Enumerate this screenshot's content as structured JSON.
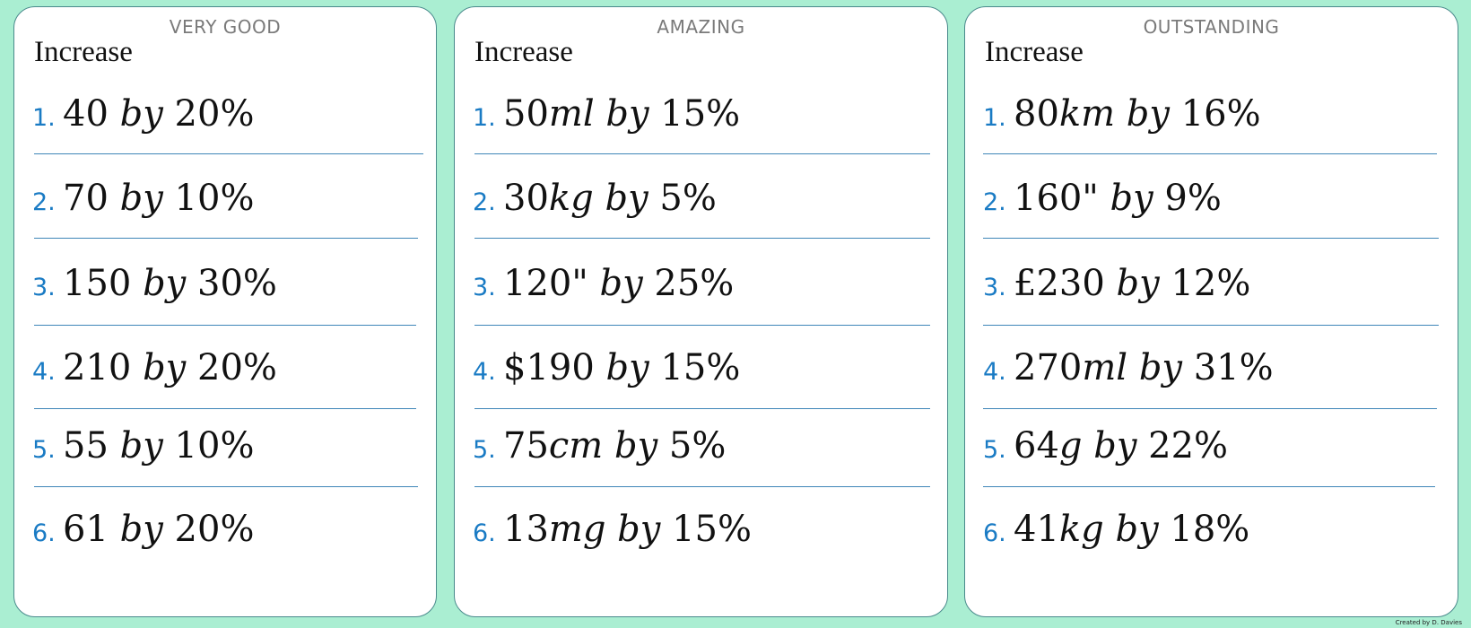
{
  "cards": [
    {
      "title": "VERY GOOD",
      "heading": "Increase",
      "questions": [
        {
          "num": "1.",
          "a": "40",
          "unit": "",
          "b": "20%"
        },
        {
          "num": "2.",
          "a": "70",
          "unit": "",
          "b": "10%"
        },
        {
          "num": "3.",
          "a": "150",
          "unit": "",
          "b": "30%"
        },
        {
          "num": "4.",
          "a": "210",
          "unit": "",
          "b": "20%"
        },
        {
          "num": "5.",
          "a": "55",
          "unit": "",
          "b": "10%"
        },
        {
          "num": "6.",
          "a": "61",
          "unit": "",
          "b": "20%"
        }
      ]
    },
    {
      "title": "AMAZING",
      "heading": "Increase",
      "questions": [
        {
          "num": "1.",
          "a": "50",
          "unit": "ml",
          "b": "15%"
        },
        {
          "num": "2.",
          "a": "30",
          "unit": "kg",
          "b": "5%"
        },
        {
          "num": "3.",
          "a": "120\"",
          "unit": "",
          "b": "25%"
        },
        {
          "num": "4.",
          "a": "$190",
          "unit": "",
          "b": "15%"
        },
        {
          "num": "5.",
          "a": "75",
          "unit": "cm",
          "b": "5%"
        },
        {
          "num": "6.",
          "a": "13",
          "unit": "mg",
          "b": "15%"
        }
      ]
    },
    {
      "title": "OUTSTANDING",
      "heading": "Increase",
      "questions": [
        {
          "num": "1.",
          "a": "80",
          "unit": "km",
          "b": "16%"
        },
        {
          "num": "2.",
          "a": "160\"",
          "unit": "",
          "b": "9%"
        },
        {
          "num": "3.",
          "a": "£230",
          "unit": "",
          "b": "12%"
        },
        {
          "num": "4.",
          "a": "270",
          "unit": "ml",
          "b": "31%"
        },
        {
          "num": "5.",
          "a": "64",
          "unit": "g",
          "b": "22%"
        },
        {
          "num": "6.",
          "a": "41",
          "unit": "kg",
          "b": "18%"
        }
      ]
    }
  ],
  "by_word": "by",
  "credit": "Created by D. Davies"
}
